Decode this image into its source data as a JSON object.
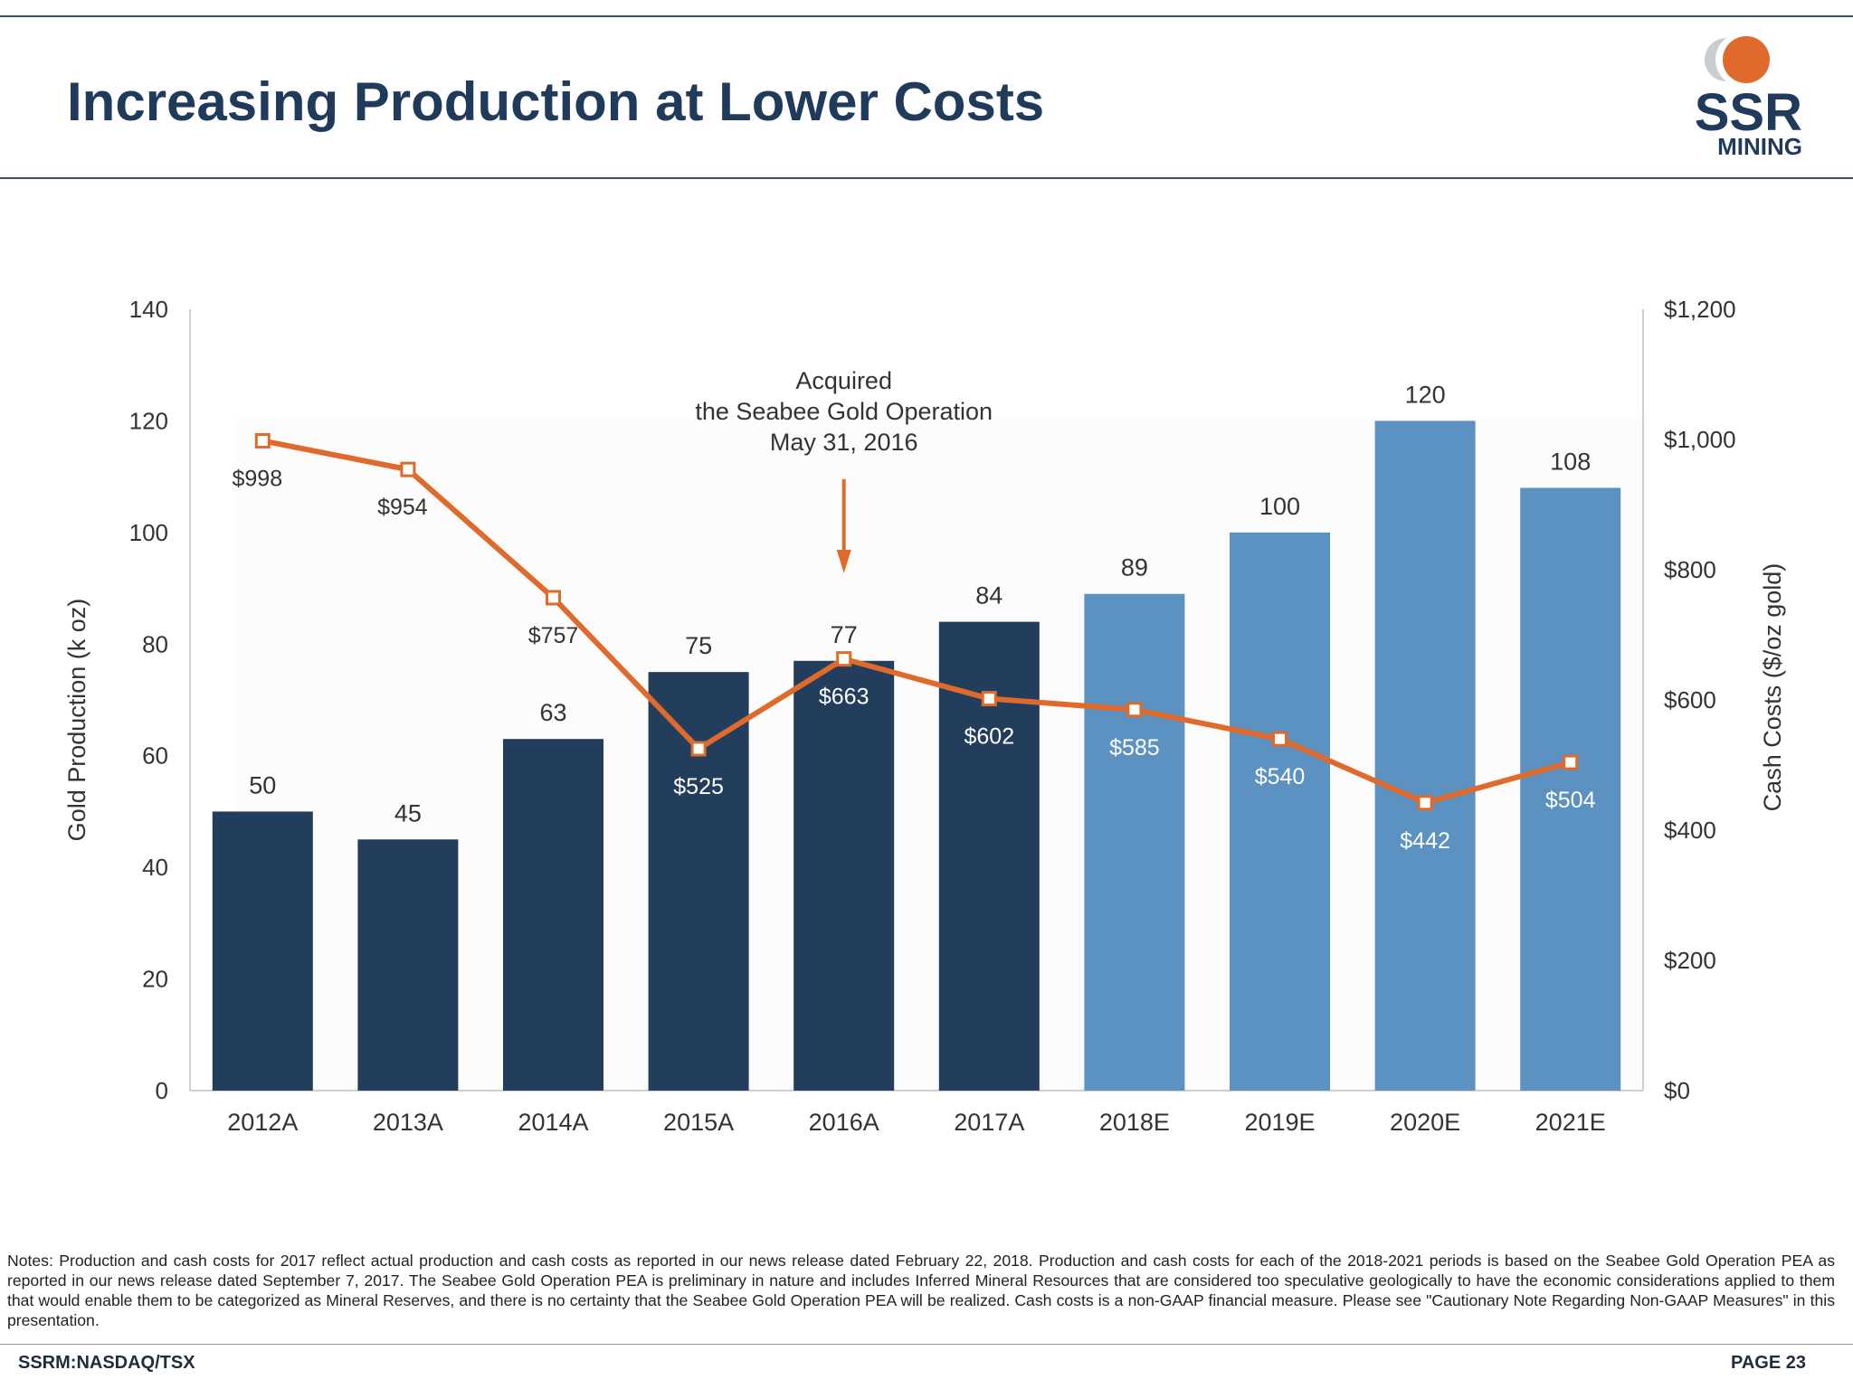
{
  "header": {
    "title": "Increasing Production at Lower Costs",
    "logo_text_main": "SSR",
    "logo_text_sub": "MINING"
  },
  "colors": {
    "actual_bar": "#233d5c",
    "estimate_bar": "#5b92c1",
    "cost_line": "#e06a2c",
    "title": "#1f3a5a",
    "axis_text": "#333333"
  },
  "chart_data": {
    "type": "bar",
    "categories": [
      "2012A",
      "2013A",
      "2014A",
      "2015A",
      "2016A",
      "2017A",
      "2018E",
      "2019E",
      "2020E",
      "2021E"
    ],
    "series": [
      {
        "axis": "left",
        "values": [
          50,
          45,
          63,
          75,
          77,
          84,
          89,
          100,
          120,
          108
        ],
        "labels": [
          "50",
          "45",
          "63",
          "75",
          "77",
          "84",
          "89",
          "100",
          "120",
          "108"
        ],
        "kinds": [
          "actual",
          "actual",
          "actual",
          "actual",
          "actual",
          "actual",
          "estimate",
          "estimate",
          "estimate",
          "estimate"
        ]
      },
      {
        "axis": "right",
        "type": "line",
        "values": [
          998,
          954,
          757,
          525,
          663,
          602,
          585,
          540,
          442,
          504
        ],
        "labels": [
          "$998",
          "$954",
          "$757",
          "$525",
          "$663",
          "$602",
          "$585",
          "$540",
          "$442",
          "$504"
        ]
      }
    ],
    "ylabel": "Gold Production (k oz)",
    "ylabel_right": "Cash Costs ($/oz gold)",
    "ylim": [
      0,
      140
    ],
    "ylim_right": [
      0,
      1200
    ],
    "yticks": [
      "0",
      "20",
      "40",
      "60",
      "80",
      "100",
      "120",
      "140"
    ],
    "yticks_right": [
      "$0",
      "$200",
      "$400",
      "$600",
      "$800",
      "$1,000",
      "$1,200"
    ],
    "annotation": {
      "lines": [
        "Acquired",
        "the Seabee Gold Operation",
        "May 31, 2016"
      ],
      "category": "2016A"
    },
    "grid": false
  },
  "notes": "Notes: Production and cash costs for 2017 reflect actual production and cash costs as reported in our news release dated February 22, 2018. Production and cash costs for each of the 2018-2021 periods is based on the Seabee Gold Operation PEA as reported in our news release dated September 7, 2017. The Seabee Gold Operation PEA is preliminary in nature and includes Inferred Mineral Resources that are considered too speculative geologically to have the economic considerations applied to them that would enable them to be categorized as Mineral Reserves, and there is no certainty that the Seabee Gold Operation PEA will be realized. Cash costs is a non-GAAP financial measure. Please see \"Cautionary Note Regarding Non-GAAP Measures\" in this presentation.",
  "footer": {
    "ticker": "SSRM:NASDAQ/TSX",
    "page": "PAGE 23"
  }
}
